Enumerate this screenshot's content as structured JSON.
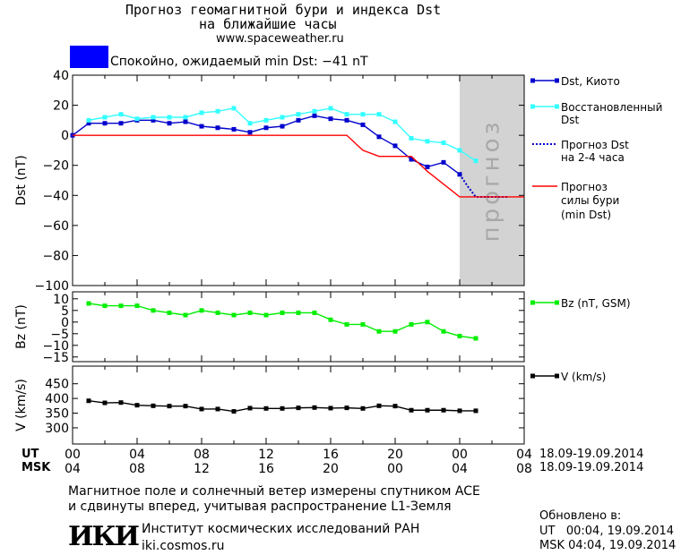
{
  "header": {
    "title_line1": "Прогноз геомагнитной бури и индекса Dst",
    "title_line2": "на ближайшие часы",
    "url": "www.spaceweather.ru",
    "status_text": "Спокойно, ожидаемый min Dst: −41 nT",
    "status_color": "#0000ff"
  },
  "legend": {
    "dst_kyoto": "Dst, Киото",
    "restored_l1": "Восстановленный",
    "restored_l2": "Dst",
    "forecast_dst_l1": "Прогноз Dst",
    "forecast_dst_l2": "на 2-4 часа",
    "storm_l1": "Прогноз",
    "storm_l2": "силы бури",
    "storm_l3": "(min Dst)",
    "bz": "Bz (nT, GSM)",
    "v": "V (km/s)"
  },
  "forecast_label": "прогноз",
  "axes": {
    "ut_label": "UT",
    "msk_label": "MSK",
    "ut_ticks": [
      "00",
      "04",
      "08",
      "12",
      "16",
      "20",
      "00",
      "04"
    ],
    "msk_ticks": [
      "04",
      "08",
      "12",
      "16",
      "20",
      "00",
      "04",
      "08"
    ],
    "ut_dates": "18.09-19.09.2014",
    "msk_dates": "18.09-19.09.2014"
  },
  "footer": {
    "note_l1": "Магнитное поле и солнечный ветер измерены спутником ACE",
    "note_l2": "и сдвинуты вперед, учитывая распространение L1-Земля",
    "logo": "ИКИ",
    "institute": "Институт космических исследований РАН",
    "site": "iki.cosmos.ru",
    "updated_title": "Обновлено в:",
    "updated_ut": "UT   00:04, 19.09.2014",
    "updated_msk": "MSK 04:04, 19.09.2014"
  },
  "chart_data": [
    {
      "type": "line",
      "ylabel": "Dst (nT)",
      "xlim": [
        0,
        28
      ],
      "ylim": [
        -100,
        40
      ],
      "yticks": [
        40,
        20,
        0,
        -20,
        -40,
        -60,
        -80,
        -100
      ],
      "forecast_shade_start": 24,
      "series": [
        {
          "name": "Dst, Киото",
          "color": "#0000cc",
          "marker": "square",
          "x": [
            0,
            1,
            2,
            3,
            4,
            5,
            6,
            7,
            8,
            9,
            10,
            11,
            12,
            13,
            14,
            15,
            16,
            17,
            18,
            19,
            20,
            21,
            22,
            23,
            24
          ],
          "y": [
            0,
            8,
            8,
            8,
            10,
            10,
            8,
            9,
            6,
            5,
            4,
            2,
            5,
            6,
            10,
            13,
            11,
            10,
            7,
            -1,
            -7,
            -16,
            -21,
            -18,
            -26
          ]
        },
        {
          "name": "Восстановленный Dst",
          "color": "#33ffff",
          "marker": "square",
          "x": [
            1,
            2,
            3,
            4,
            5,
            6,
            7,
            8,
            9,
            10,
            11,
            12,
            13,
            14,
            15,
            16,
            17,
            18,
            19,
            20,
            21,
            22,
            23,
            24,
            25
          ],
          "y": [
            10,
            12,
            14,
            11,
            12,
            12,
            12,
            15,
            16,
            18,
            8,
            10,
            12,
            14,
            16,
            18,
            14,
            14,
            14,
            9,
            -2,
            -4,
            -5,
            -10,
            -17
          ]
        },
        {
          "name": "Прогноз Dst на 2-4 часа",
          "color": "#0000cc",
          "style": "dotted",
          "x": [
            24,
            24.5,
            25,
            25.5,
            26,
            27
          ],
          "y": [
            -26,
            -34,
            -41,
            -41,
            -41,
            -41
          ]
        },
        {
          "name": "Прогноз силы бури (min Dst)",
          "color": "#ff0000",
          "x": [
            0,
            1,
            17,
            18,
            19,
            21,
            22,
            24,
            28
          ],
          "y": [
            0,
            0,
            0,
            -10,
            -14,
            -14,
            -24,
            -41,
            -41
          ]
        }
      ]
    },
    {
      "type": "line",
      "ylabel": "Bz (nT)",
      "xlim": [
        0,
        28
      ],
      "ylim": [
        -17,
        13
      ],
      "yticks": [
        10,
        5,
        0,
        -5,
        -10,
        -15
      ],
      "series": [
        {
          "name": "Bz (nT, GSM)",
          "color": "#00ee00",
          "marker": "square",
          "x": [
            1,
            2,
            3,
            4,
            5,
            6,
            7,
            8,
            9,
            10,
            11,
            12,
            13,
            14,
            15,
            16,
            17,
            18,
            19,
            20,
            21,
            22,
            23,
            24,
            25
          ],
          "y": [
            8,
            7,
            7,
            7,
            5,
            4,
            3,
            5,
            4,
            3,
            4,
            3,
            4,
            4,
            4,
            1,
            -1,
            -1,
            -4,
            -4,
            -1,
            0,
            -4,
            -6,
            -7
          ]
        }
      ]
    },
    {
      "type": "line",
      "ylabel": "V (km/s)",
      "xlim": [
        0,
        28
      ],
      "ylim": [
        245,
        510
      ],
      "yticks": [
        450,
        400,
        350,
        300
      ],
      "series": [
        {
          "name": "V (km/s)",
          "color": "#000000",
          "marker": "square",
          "x": [
            1,
            2,
            3,
            4,
            5,
            6,
            7,
            8,
            9,
            10,
            11,
            12,
            13,
            14,
            15,
            16,
            17,
            18,
            19,
            20,
            21,
            22,
            23,
            24,
            25
          ],
          "y": [
            392,
            385,
            386,
            377,
            375,
            374,
            374,
            364,
            364,
            356,
            367,
            366,
            366,
            368,
            369,
            367,
            368,
            366,
            375,
            374,
            360,
            360,
            360,
            358,
            358
          ]
        }
      ]
    }
  ]
}
